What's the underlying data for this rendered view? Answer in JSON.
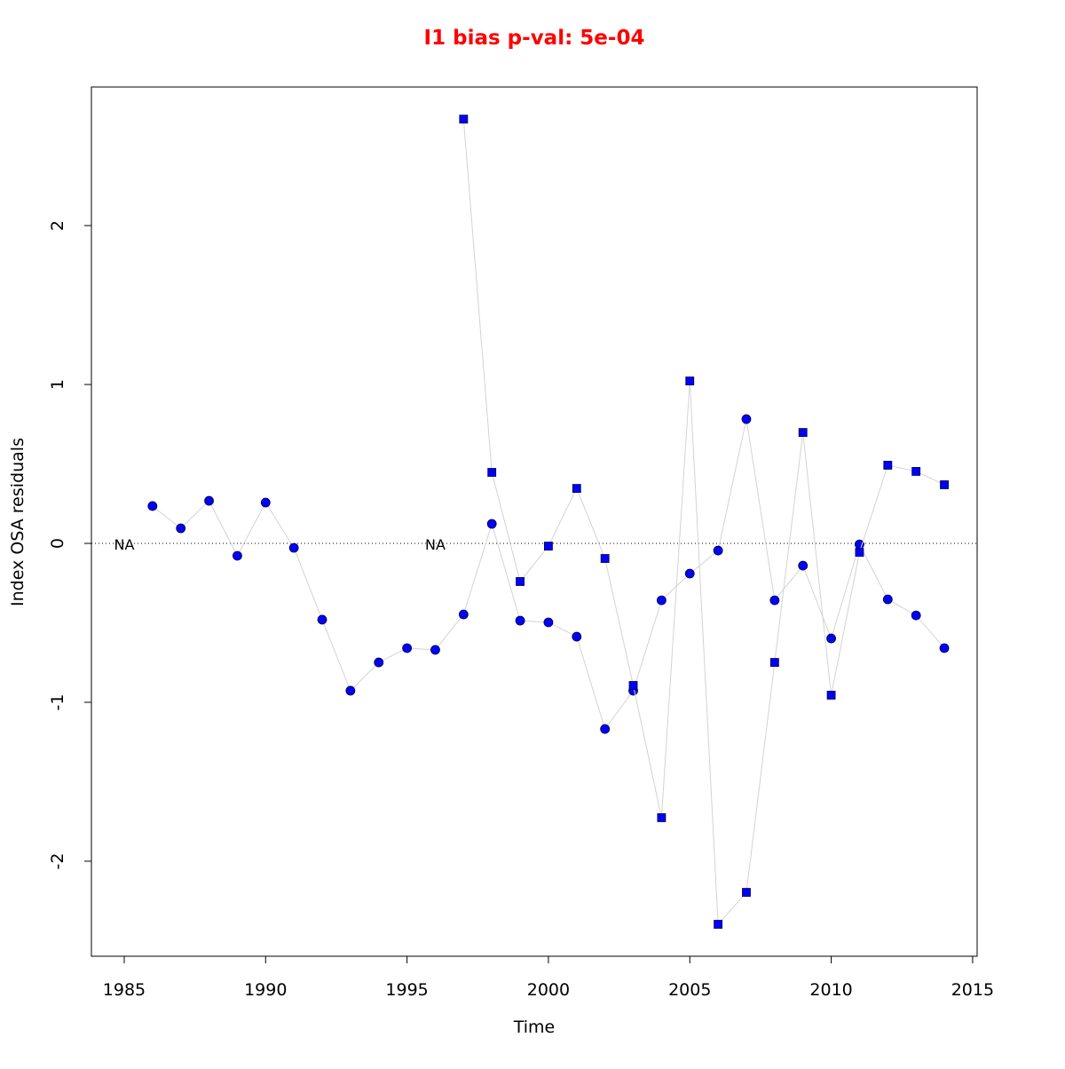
{
  "chart_data": {
    "type": "line",
    "title": "I1 bias p-val: 5e-04",
    "title_color": "#ff0000",
    "x_label": "Time",
    "y_label": "Index OSA residuals",
    "na_label": "NA",
    "hline": 0,
    "line_color": "#d3d3d3",
    "xlim": [
      1983.84,
      2015.16
    ],
    "ylim": [
      -2.598,
      2.872
    ],
    "xticks": [
      1985,
      1990,
      1995,
      2000,
      2005,
      2010,
      2015
    ],
    "yticks": [
      -2,
      -1,
      0,
      1,
      2
    ],
    "series": [
      {
        "marker": "circle",
        "color": "#0000ff",
        "x": [
          1985,
          1986,
          1987,
          1988,
          1989,
          1990,
          1991,
          1992,
          1993,
          1994,
          1995,
          1996,
          1997,
          1998,
          1999,
          2000,
          2001,
          2002,
          2003,
          2004,
          2005,
          2006,
          2007,
          2008,
          2009,
          2010,
          2011,
          2012,
          2013,
          2014
        ],
        "values": [
          null,
          0.235,
          0.095,
          0.268,
          -0.078,
          0.257,
          -0.028,
          -0.48,
          -0.927,
          -0.749,
          -0.659,
          -0.67,
          -0.447,
          0.123,
          -0.486,
          -0.497,
          -0.587,
          -1.168,
          -0.927,
          -0.358,
          -0.19,
          -0.045,
          0.782,
          -0.358,
          -0.14,
          -0.598,
          -0.006,
          -0.352,
          -0.453,
          -0.659
        ]
      },
      {
        "marker": "square",
        "color": "#0000ff",
        "x": [
          1996,
          1997,
          1998,
          1999,
          2000,
          2001,
          2002,
          2003,
          2004,
          2005,
          2006,
          2007,
          2008,
          2009,
          2010,
          2011,
          2012,
          2013,
          2014
        ],
        "values": [
          null,
          2.67,
          0.447,
          -0.24,
          -0.017,
          0.346,
          -0.095,
          -0.894,
          -1.726,
          1.022,
          -2.397,
          -2.196,
          -0.749,
          0.698,
          -0.955,
          -0.056,
          0.492,
          0.453,
          0.369
        ]
      }
    ]
  }
}
